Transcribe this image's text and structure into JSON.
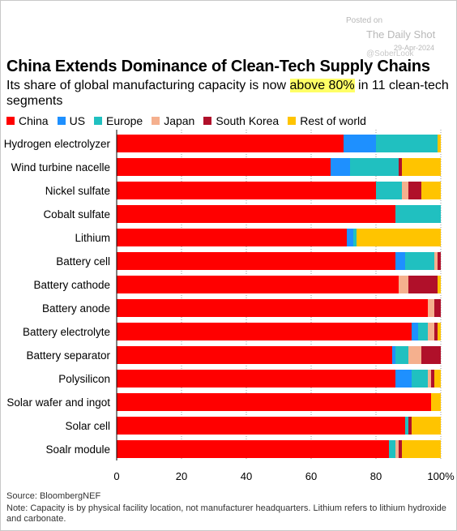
{
  "watermark": {
    "posted": "Posted on",
    "site": "The Daily Shot",
    "date": "29-Apr-2024",
    "handle": "@SoberLook"
  },
  "title": "China Extends Dominance of Clean-Tech Supply Chains",
  "subtitle_pre": "Its share of global manufacturing capacity is now ",
  "subtitle_highlight": "above 80%",
  "subtitle_post": " in 11 clean-tech segments",
  "legend": [
    {
      "name": "China",
      "color": "#ff0000"
    },
    {
      "name": "US",
      "color": "#1e90ff"
    },
    {
      "name": "Europe",
      "color": "#20c0c0"
    },
    {
      "name": "Japan",
      "color": "#f5b08e"
    },
    {
      "name": "South Korea",
      "color": "#b0102a"
    },
    {
      "name": "Rest of world",
      "color": "#ffc400"
    }
  ],
  "chart_data": {
    "type": "bar",
    "orientation": "horizontal",
    "stacked": true,
    "categories": [
      "Hydrogen electrolyzer",
      "Wind turbine nacelle",
      "Nickel sulfate",
      "Cobalt sulfate",
      "Lithium",
      "Battery cell",
      "Battery cathode",
      "Battery anode",
      "Battery electrolyte",
      "Battery separator",
      "Polysilicon",
      "Solar wafer and ingot",
      "Solar cell",
      "Soalr module"
    ],
    "series": [
      {
        "name": "China",
        "color": "#ff0000",
        "values": [
          70,
          66,
          80,
          86,
          71,
          86,
          87,
          96,
          91,
          85,
          86,
          97,
          89,
          84
        ]
      },
      {
        "name": "US",
        "color": "#1e90ff",
        "values": [
          10,
          6,
          0,
          0,
          2,
          3,
          0,
          0,
          2,
          1,
          5,
          0,
          0,
          0
        ]
      },
      {
        "name": "Europe",
        "color": "#20c0c0",
        "values": [
          19,
          15,
          8,
          14,
          1,
          9,
          0,
          0,
          3,
          4,
          5,
          0,
          1,
          2
        ]
      },
      {
        "name": "Japan",
        "color": "#f5b08e",
        "values": [
          0,
          0,
          2,
          0,
          0,
          1,
          3,
          2,
          2,
          4,
          1,
          0,
          0,
          1
        ]
      },
      {
        "name": "South Korea",
        "color": "#b0102a",
        "values": [
          0,
          1,
          4,
          0,
          0,
          1,
          9,
          2,
          1,
          6,
          1,
          0,
          1,
          1
        ]
      },
      {
        "name": "Rest of world",
        "color": "#ffc400",
        "values": [
          1,
          12,
          6,
          0,
          26,
          0,
          1,
          0,
          1,
          0,
          2,
          3,
          9,
          12
        ]
      }
    ],
    "xlim": [
      0,
      100
    ],
    "xticks": [
      "0",
      "20",
      "40",
      "60",
      "80",
      "100%"
    ],
    "grid": "vertical-dotted"
  },
  "source": "Source: BloombergNEF",
  "note": "Note: Capacity is by physical facility location, not manufacturer headquarters. Lithium refers to lithium hydroxide and carbonate."
}
